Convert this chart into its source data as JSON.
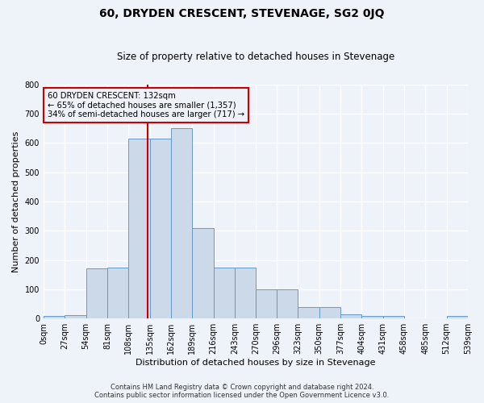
{
  "title": "60, DRYDEN CRESCENT, STEVENAGE, SG2 0JQ",
  "subtitle": "Size of property relative to detached houses in Stevenage",
  "xlabel": "Distribution of detached houses by size in Stevenage",
  "ylabel": "Number of detached properties",
  "bin_edges": [
    0,
    27,
    54,
    81,
    108,
    135,
    162,
    189,
    216,
    243,
    270,
    296,
    323,
    350,
    377,
    404,
    431,
    458,
    485,
    512,
    539
  ],
  "bar_heights": [
    8,
    12,
    170,
    175,
    615,
    615,
    650,
    310,
    175,
    175,
    100,
    100,
    40,
    40,
    15,
    8,
    8,
    0,
    0,
    8
  ],
  "bar_color": "#ccd9e8",
  "bar_edge_color": "#6699cc",
  "property_size": 132,
  "vline_color": "#cc0000",
  "annotation_box_color": "#cc0000",
  "annotation_text": "60 DRYDEN CRESCENT: 132sqm\n← 65% of detached houses are smaller (1,357)\n34% of semi-detached houses are larger (717) →",
  "ylim": [
    0,
    800
  ],
  "yticks": [
    0,
    100,
    200,
    300,
    400,
    500,
    600,
    700,
    800
  ],
  "footer_line1": "Contains HM Land Registry data © Crown copyright and database right 2024.",
  "footer_line2": "Contains public sector information licensed under the Open Government Licence v3.0.",
  "background_color": "#eef2f9",
  "grid_color": "#ffffff"
}
